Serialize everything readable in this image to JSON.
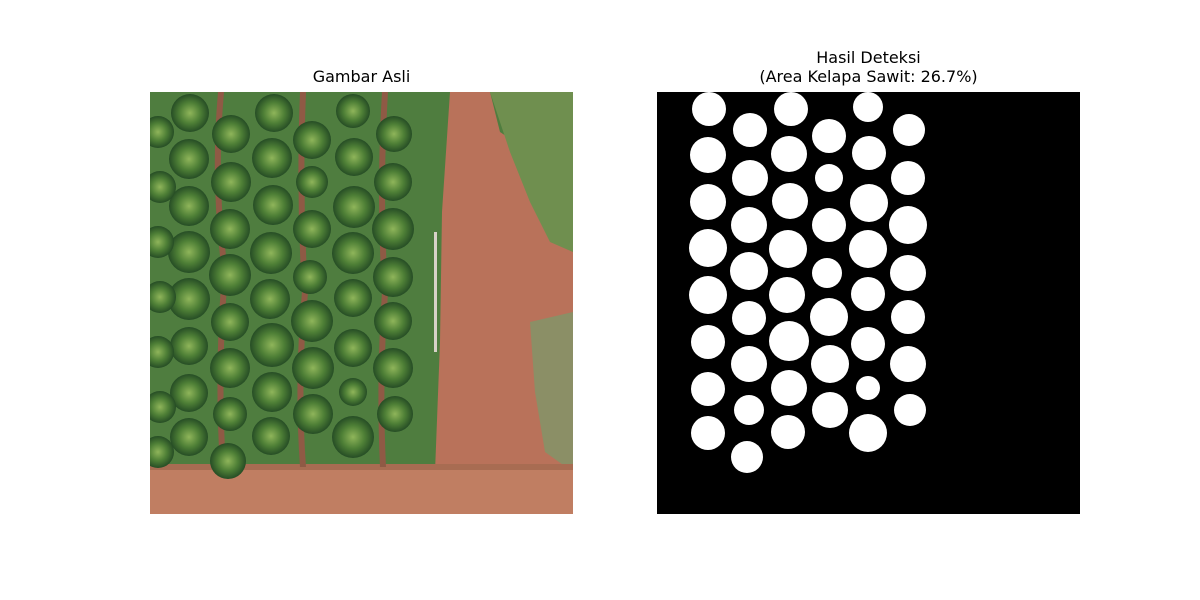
{
  "figure": {
    "left_title": "Gambar Asli",
    "right_title_line1": "Hasil Deteksi",
    "right_title_line2": "(Area Kelapa Sawit: 26.7%)"
  },
  "colors": {
    "grass": "#4f7d3f",
    "soil": "#b76d52",
    "palm_dark": "#2e5b2c",
    "palm_light": "#6a9a4a",
    "mask_bg": "#000000",
    "mask_fg": "#ffffff"
  },
  "detection": {
    "area_percent": 26.7
  }
}
